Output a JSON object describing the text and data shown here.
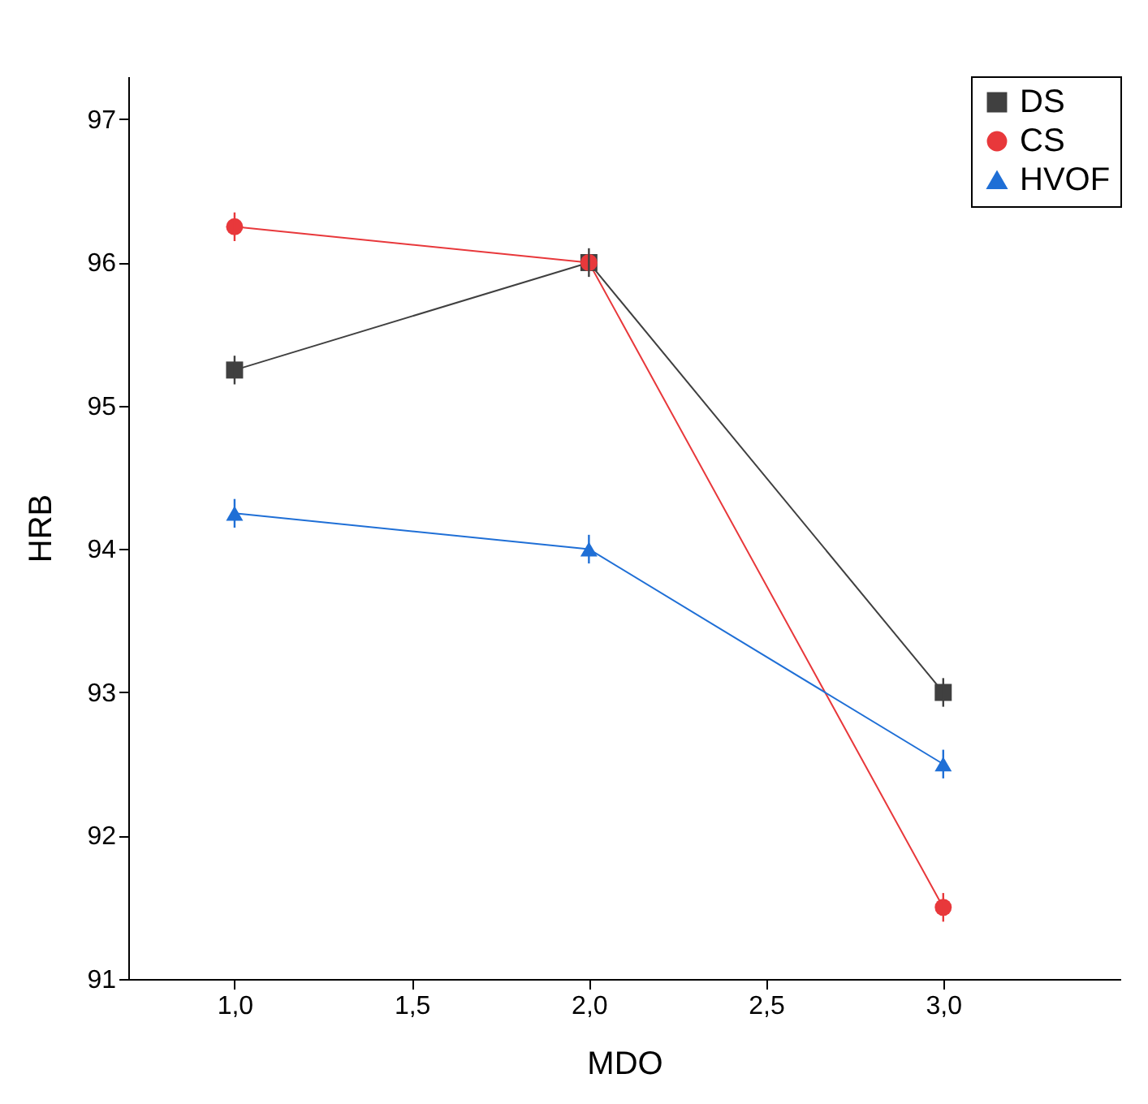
{
  "chart_data": {
    "type": "line",
    "xlabel": "MDO",
    "ylabel": "HRB",
    "x": [
      1,
      2,
      3
    ],
    "xlim": [
      0.7,
      3.5
    ],
    "xticks": [
      {
        "value": 1,
        "label": "1,0"
      },
      {
        "value": 1.5,
        "label": "1,5"
      },
      {
        "value": 2,
        "label": "2,0"
      },
      {
        "value": 2.5,
        "label": "2,5"
      },
      {
        "value": 3,
        "label": "3,0"
      }
    ],
    "ylim": [
      91,
      97.3
    ],
    "yticks": [
      91,
      92,
      93,
      94,
      95,
      96,
      97
    ],
    "legend": "top right",
    "grid": false,
    "line_style": "solid",
    "series": [
      {
        "name": "DS",
        "color": "#404040",
        "marker": "square",
        "values": [
          95.25,
          96,
          93
        ],
        "errors": [
          0.1,
          0.1,
          0.1
        ]
      },
      {
        "name": "CS",
        "color": "#e8383b",
        "marker": "circle",
        "values": [
          96.25,
          96,
          91.5
        ],
        "errors": [
          0.1,
          null,
          0.1
        ]
      },
      {
        "name": "HVOF",
        "color": "#1f6fd6",
        "marker": "triangle",
        "values": [
          94.25,
          94,
          92.5
        ],
        "errors": [
          0.1,
          0.1,
          0.1
        ]
      }
    ]
  }
}
